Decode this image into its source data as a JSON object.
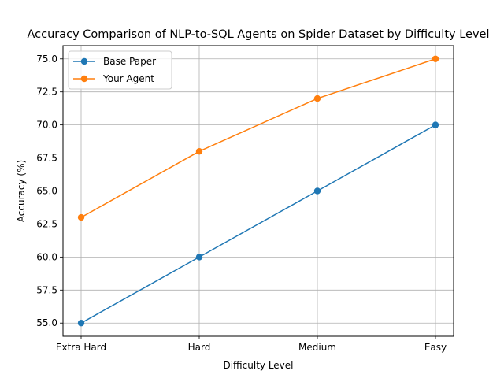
{
  "chart_data": {
    "type": "line",
    "title": "Accuracy Comparison of NLP-to-SQL Agents on Spider Dataset by Difficulty Level",
    "xlabel": "Difficulty Level",
    "ylabel": "Accuracy (%)",
    "categories": [
      "Extra Hard",
      "Hard",
      "Medium",
      "Easy"
    ],
    "ylim": [
      54.0,
      76.0
    ],
    "yticks": [
      "55.0",
      "57.5",
      "60.0",
      "62.5",
      "65.0",
      "67.5",
      "70.0",
      "72.5",
      "75.0"
    ],
    "grid": true,
    "legend_position": "top-left",
    "series": [
      {
        "name": "Base Paper",
        "values": [
          55,
          60,
          65,
          70
        ],
        "color": "#1f77b4",
        "marker": "circle"
      },
      {
        "name": "Your Agent",
        "values": [
          63,
          68,
          72,
          75
        ],
        "color": "#ff7f0e",
        "marker": "circle"
      }
    ]
  }
}
